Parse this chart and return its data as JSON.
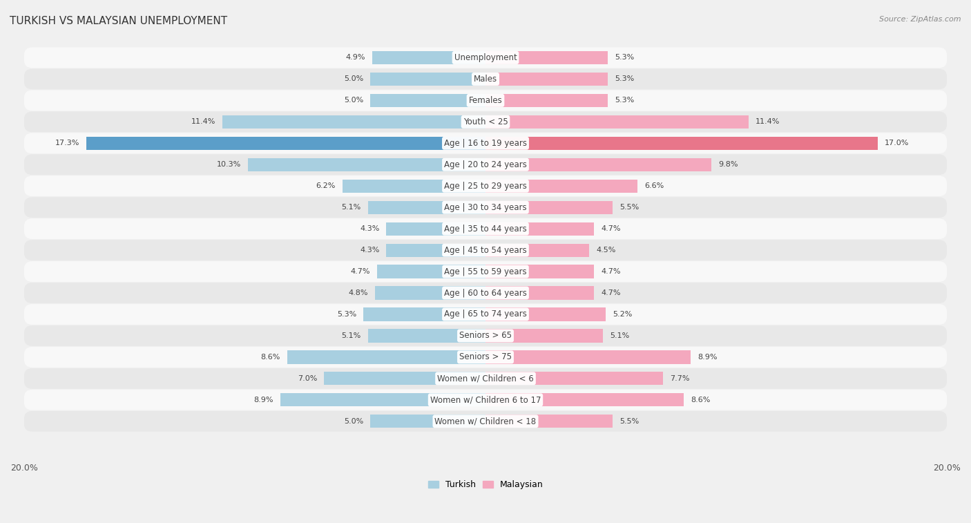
{
  "title": "TURKISH VS MALAYSIAN UNEMPLOYMENT",
  "source": "Source: ZipAtlas.com",
  "categories": [
    "Unemployment",
    "Males",
    "Females",
    "Youth < 25",
    "Age | 16 to 19 years",
    "Age | 20 to 24 years",
    "Age | 25 to 29 years",
    "Age | 30 to 34 years",
    "Age | 35 to 44 years",
    "Age | 45 to 54 years",
    "Age | 55 to 59 years",
    "Age | 60 to 64 years",
    "Age | 65 to 74 years",
    "Seniors > 65",
    "Seniors > 75",
    "Women w/ Children < 6",
    "Women w/ Children 6 to 17",
    "Women w/ Children < 18"
  ],
  "turkish": [
    4.9,
    5.0,
    5.0,
    11.4,
    17.3,
    10.3,
    6.2,
    5.1,
    4.3,
    4.3,
    4.7,
    4.8,
    5.3,
    5.1,
    8.6,
    7.0,
    8.9,
    5.0
  ],
  "malaysian": [
    5.3,
    5.3,
    5.3,
    11.4,
    17.0,
    9.8,
    6.6,
    5.5,
    4.7,
    4.5,
    4.7,
    4.7,
    5.2,
    5.1,
    8.9,
    7.7,
    8.6,
    5.5
  ],
  "turkish_color": "#a8cfe0",
  "malaysian_color": "#f4a8be",
  "turkish_highlight_color": "#5b9ec9",
  "malaysian_highlight_color": "#e8768a",
  "background_color": "#f0f0f0",
  "row_color_odd": "#e8e8e8",
  "row_color_even": "#f8f8f8",
  "max_val": 20.0,
  "bar_height": 0.62,
  "fontsize_title": 11,
  "fontsize_labels": 8.5,
  "fontsize_values": 8,
  "fontsize_axis": 9,
  "fontsize_source": 8,
  "fontsize_legend": 9
}
